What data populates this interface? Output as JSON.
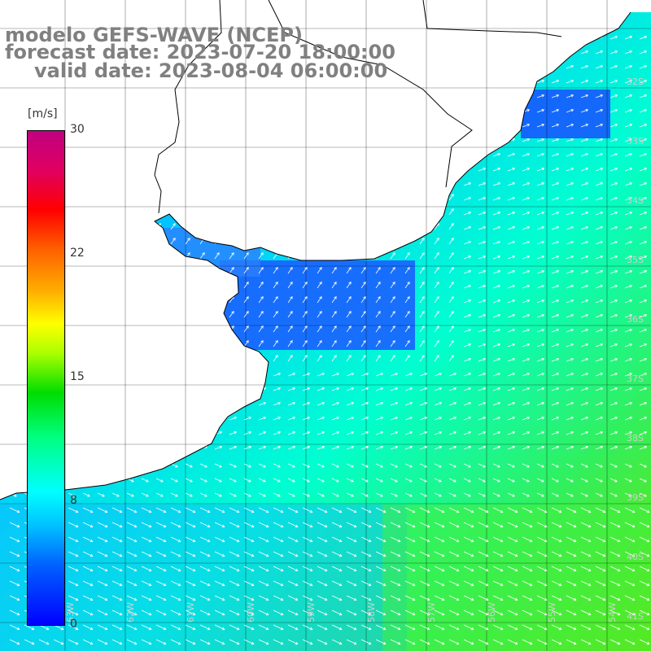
{
  "map": {
    "title_model": "modelo GEFS-WAVE (NCEP)",
    "title_forecast": "forecast date: 2023-07-20 18:00:00",
    "title_valid": "valid date: 2023-08-04 06:00:00",
    "colorbar": {
      "unit": "[m/s]",
      "ticks": [
        "30",
        "22",
        "15",
        "8",
        "0"
      ],
      "min": 0,
      "max": 30
    },
    "lat_labels": [
      "32S",
      "33S",
      "34S",
      "35S",
      "36S",
      "37S",
      "38S",
      "39S",
      "40S",
      "41S"
    ],
    "lon_labels": [
      "63W",
      "62W",
      "61W",
      "60W",
      "59W",
      "58W",
      "57W",
      "56W",
      "55W",
      "54W"
    ],
    "colors": {
      "land": "#ffffff",
      "coast": "#000000",
      "grid": "#000000",
      "vector": "#ffffff",
      "text": "#808080"
    }
  }
}
